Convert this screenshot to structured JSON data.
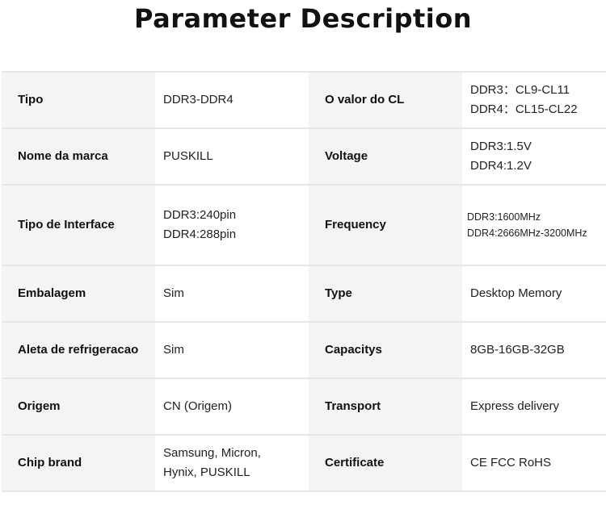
{
  "title": "Parameter Description",
  "rows": [
    {
      "label1": "Tipo",
      "value1": [
        "DDR3-DDR4"
      ],
      "label2": "O valor do CL",
      "value2": [
        "DDR3：CL9-CL11",
        "DDR4：CL15-CL22"
      ]
    },
    {
      "label1": "Nome da marca",
      "value1": [
        "PUSKILL"
      ],
      "label2": "Voltage",
      "value2": [
        "DDR3:1.5V",
        "DDR4:1.2V"
      ]
    },
    {
      "label1": "Tipo de Interface",
      "value1": [
        "DDR3:240pin",
        "DDR4:288pin"
      ],
      "label2": "Frequency",
      "value2": [
        "DDR3:1600MHz",
        "DDR4:2666MHz-3200MHz"
      ]
    },
    {
      "label1": "Embalagem",
      "value1": [
        "Sim"
      ],
      "label2": "Type",
      "value2": [
        "Desktop Memory"
      ]
    },
    {
      "label1": "Aleta de refrigeracao",
      "value1": [
        "Sim"
      ],
      "label2": "Capacitys",
      "value2": [
        "8GB-16GB-32GB"
      ]
    },
    {
      "label1": "Origem",
      "value1": [
        "CN (Origem)"
      ],
      "label2": "Transport",
      "value2": [
        "Express delivery"
      ]
    },
    {
      "label1": "Chip brand",
      "value1": [
        "Samsung, Micron,",
        " Hynix, PUSKILL"
      ],
      "label2": "Certificate",
      "value2": [
        "CE FCC RoHS"
      ]
    }
  ]
}
